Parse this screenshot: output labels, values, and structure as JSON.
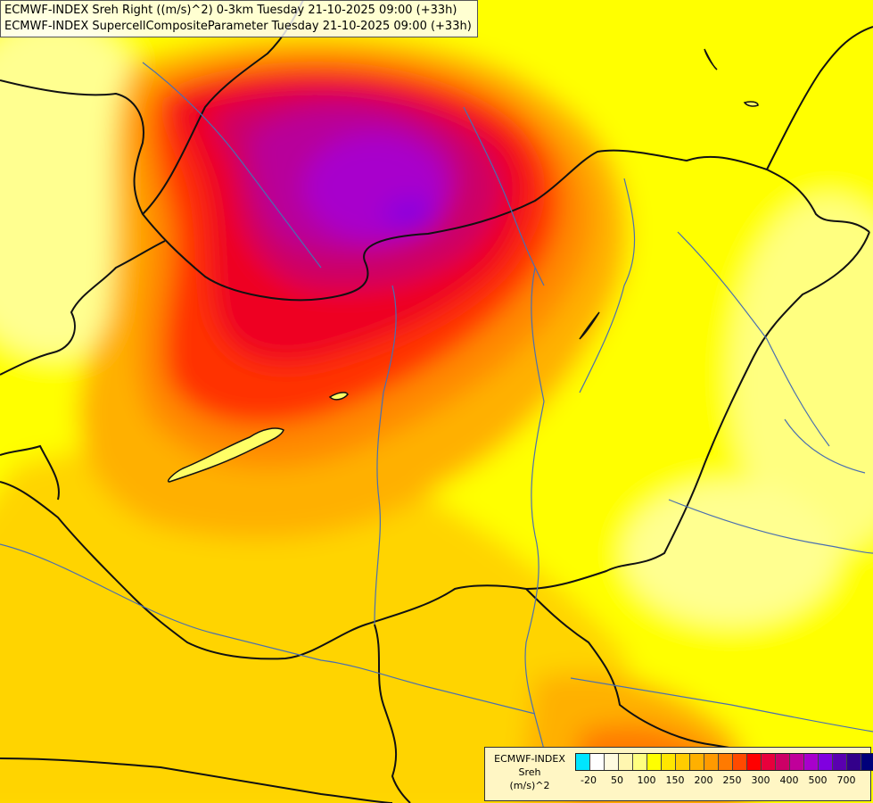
{
  "title": {
    "line1": "ECMWF-INDEX Sreh Right ((m/s)^2) 0-3km Tuesday 21-10-2025 09:00 (+33h)",
    "line2": "ECMWF-INDEX SupercellCompositeParameter Tuesday 21-10-2025 09:00 (+33h)"
  },
  "legend": {
    "line1": "ECMWF-INDEX",
    "line2": "Sreh",
    "line3": "(m/s)^2",
    "colors": [
      "#00e5ff",
      "#ffffff",
      "#fffbe0",
      "#fff6b0",
      "#ffff80",
      "#ffff00",
      "#ffe600",
      "#ffcc00",
      "#ffb000",
      "#ff9a00",
      "#ff7a00",
      "#ff4a00",
      "#ff0000",
      "#e8003c",
      "#cc0066",
      "#c0009a",
      "#a800cc",
      "#8000e0",
      "#5a00b0",
      "#33008a",
      "#00007a"
    ],
    "ticks": [
      "-20",
      "50",
      "100",
      "150",
      "200",
      "250",
      "300",
      "400",
      "500",
      "700"
    ]
  },
  "colors": {
    "border": "#111111",
    "river": "#4a6fb0",
    "lake_fill": "#ffff66"
  }
}
